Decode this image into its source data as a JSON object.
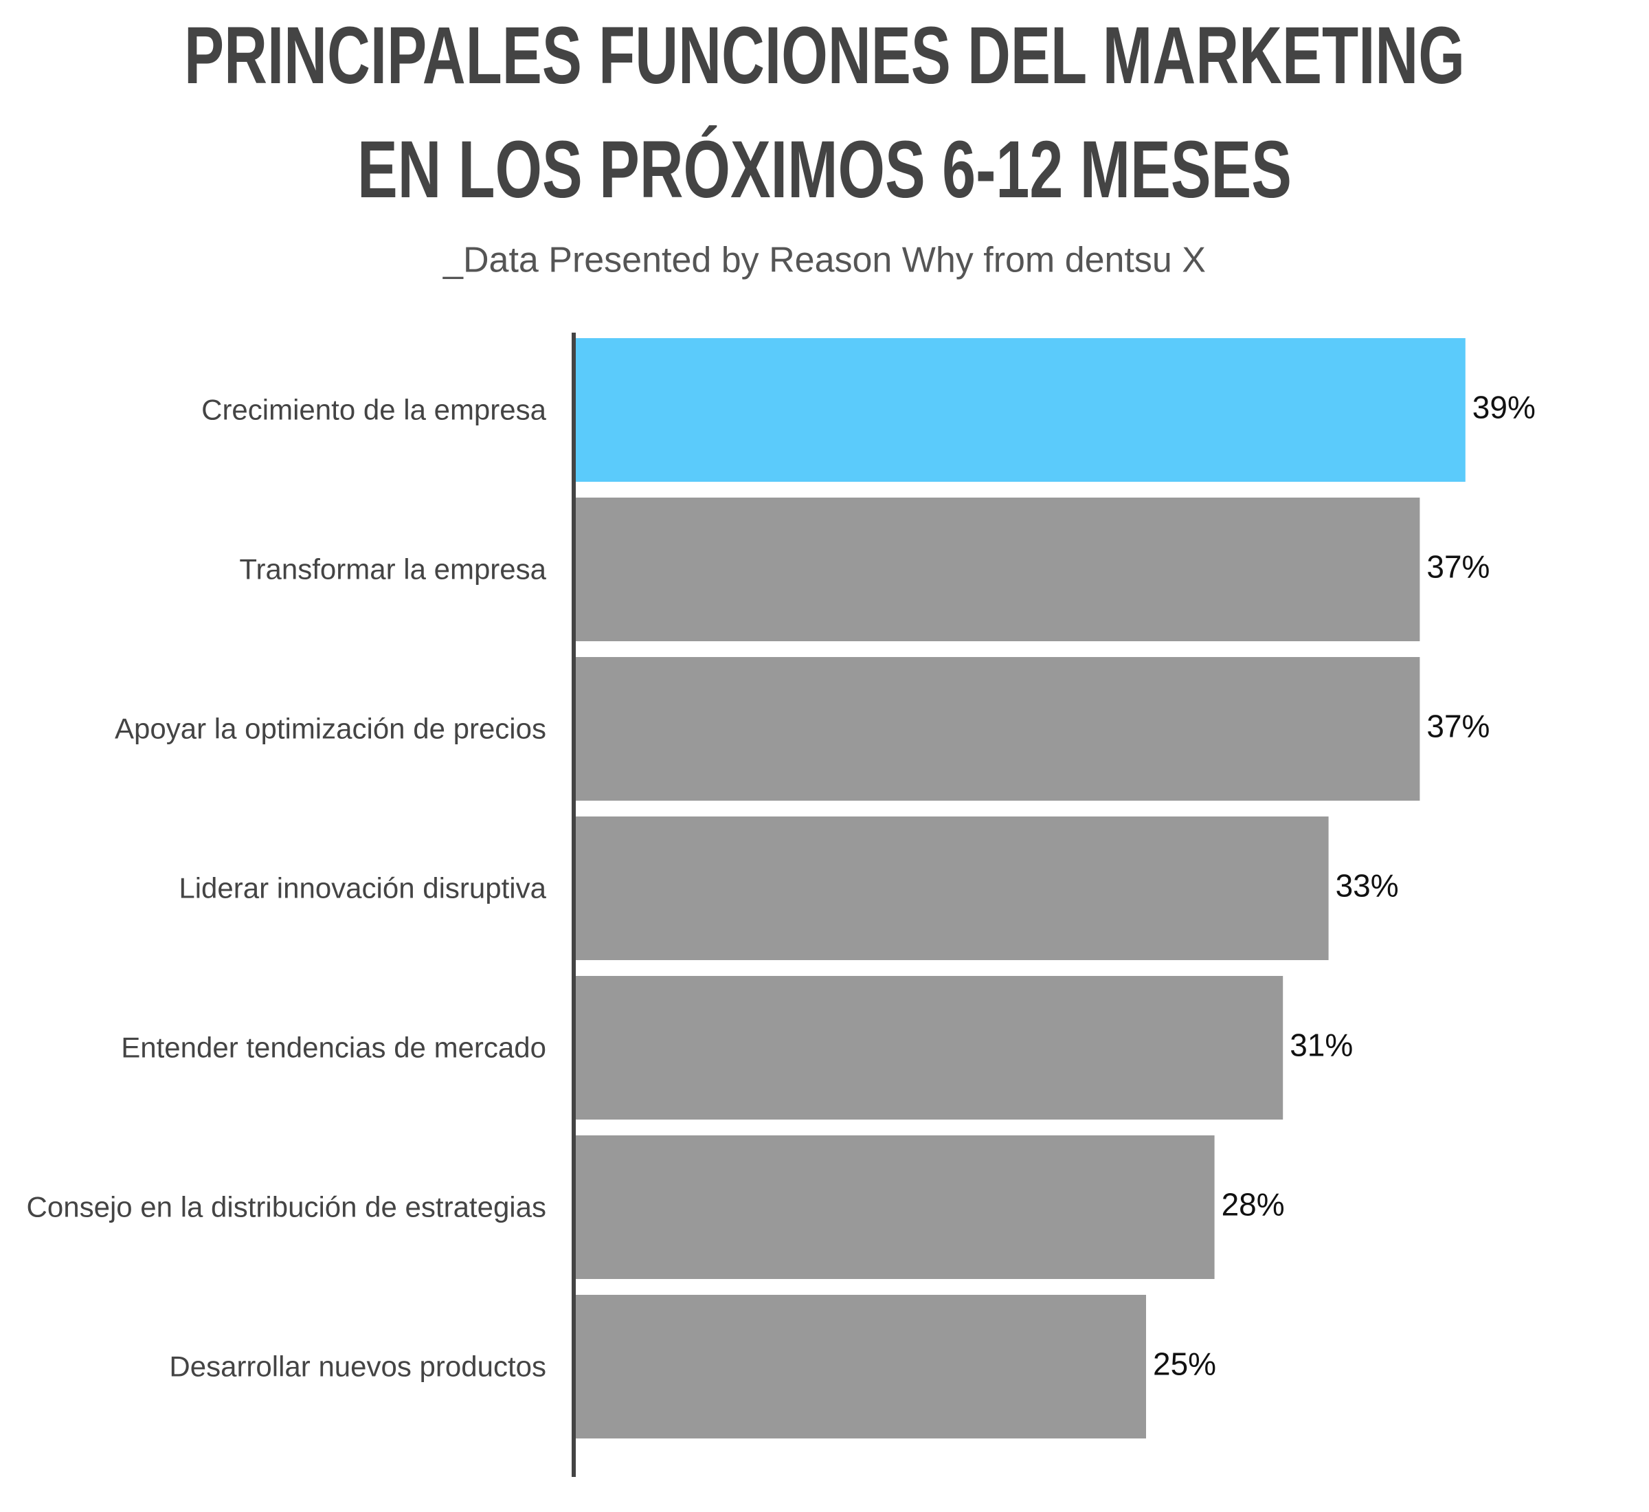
{
  "chart_data": {
    "type": "barh",
    "title": [
      "PRINCIPALES FUNCIONES DEL MARKETING",
      "EN LOS PRÓXIMOS 6-12 MESES"
    ],
    "subtitle": "_Data Presented by Reason Why from dentsu X",
    "categories": [
      "Crecimiento de la empresa",
      "Transformar la empresa",
      "Apoyar la optimización de precios",
      "Liderar innovación disruptiva",
      "Entender tendencias de mercado",
      "Consejo en la distribución de estrategias",
      "Desarrollar nuevos productos"
    ],
    "values": [
      39,
      37,
      37,
      33,
      31,
      28,
      25
    ],
    "value_labels": [
      "39%",
      "37%",
      "37%",
      "33%",
      "31%",
      "28%",
      "25%"
    ],
    "colors": [
      "#5bcbfb",
      "#999999",
      "#999999",
      "#999999",
      "#999999",
      "#999999",
      "#999999"
    ],
    "xlim": [
      0,
      45
    ]
  }
}
